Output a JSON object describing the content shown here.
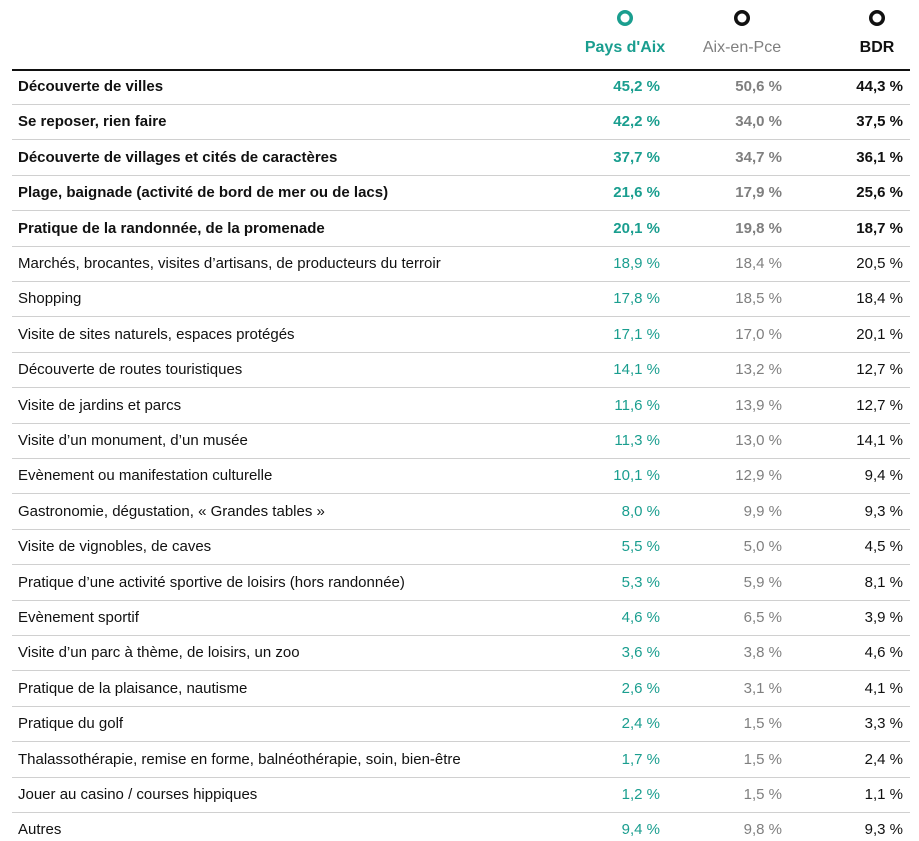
{
  "table": {
    "columns": [
      {
        "name": "Pays d'Aix",
        "color": "#1a9e8f"
      },
      {
        "name": "Aix-en-Pce",
        "color": "#7f7f7f"
      },
      {
        "name": "BDR",
        "color": "#111111"
      }
    ],
    "rows": [
      {
        "label": "Découverte de villes",
        "values": [
          "45,2 %",
          "50,6 %",
          "44,3 %"
        ],
        "bold": true
      },
      {
        "label": "Se reposer, rien faire",
        "values": [
          "42,2 %",
          "34,0 %",
          "37,5 %"
        ],
        "bold": true
      },
      {
        "label": "Découverte de villages et cités de caractères",
        "values": [
          "37,7 %",
          "34,7 %",
          "36,1 %"
        ],
        "bold": true
      },
      {
        "label": "Plage, baignade (activité de bord de mer ou de lacs)",
        "values": [
          "21,6 %",
          "17,9 %",
          "25,6 %"
        ],
        "bold": true
      },
      {
        "label": "Pratique de la randonnée, de la promenade",
        "values": [
          "20,1 %",
          "19,8 %",
          "18,7 %"
        ],
        "bold": true
      },
      {
        "label": "Marchés, brocantes, visites d’artisans, de producteurs du terroir",
        "values": [
          "18,9 %",
          "18,4 %",
          "20,5 %"
        ]
      },
      {
        "label": "Shopping",
        "values": [
          "17,8 %",
          "18,5 %",
          "18,4 %"
        ]
      },
      {
        "label": "Visite de sites naturels, espaces protégés",
        "values": [
          "17,1 %",
          "17,0 %",
          "20,1 %"
        ]
      },
      {
        "label": "Découverte de routes touristiques",
        "values": [
          "14,1 %",
          "13,2 %",
          "12,7 %"
        ]
      },
      {
        "label": "Visite de jardins et parcs",
        "values": [
          "11,6 %",
          "13,9 %",
          "12,7 %"
        ]
      },
      {
        "label": "Visite d’un monument, d’un musée",
        "values": [
          "11,3 %",
          "13,0 %",
          "14,1 %"
        ]
      },
      {
        "label": "Evènement ou manifestation culturelle",
        "values": [
          "10,1 %",
          "12,9 %",
          "9,4 %"
        ]
      },
      {
        "label": "Gastronomie, dégustation, « Grandes tables »",
        "values": [
          "8,0 %",
          "9,9 %",
          "9,3 %"
        ]
      },
      {
        "label": "Visite de vignobles, de caves",
        "values": [
          "5,5 %",
          "5,0 %",
          "4,5 %"
        ]
      },
      {
        "label": "Pratique d’une activité sportive de loisirs (hors randonnée)",
        "values": [
          "5,3 %",
          "5,9 %",
          "8,1 %"
        ]
      },
      {
        "label": "Evènement sportif",
        "values": [
          "4,6 %",
          "6,5 %",
          "3,9 %"
        ]
      },
      {
        "label": "Visite d’un parc à thème, de loisirs, un zoo",
        "values": [
          "3,6 %",
          "3,8 %",
          "4,6 %"
        ]
      },
      {
        "label": "Pratique de la plaisance, nautisme",
        "values": [
          "2,6 %",
          "3,1 %",
          "4,1 %"
        ]
      },
      {
        "label": "Pratique du golf",
        "values": [
          "2,4 %",
          "1,5 %",
          "3,3 %"
        ]
      },
      {
        "label": "Thalassothérapie, remise en forme, balnéothérapie, soin, bien-être",
        "values": [
          "1,7 %",
          "1,5 %",
          "2,4 %"
        ]
      },
      {
        "label": "Jouer au casino / courses hippiques",
        "values": [
          "1,2 %",
          "1,5 %",
          "1,1 %"
        ]
      },
      {
        "label": "Autres",
        "values": [
          "9,4 %",
          "9,8 %",
          "9,3 %"
        ]
      }
    ]
  }
}
